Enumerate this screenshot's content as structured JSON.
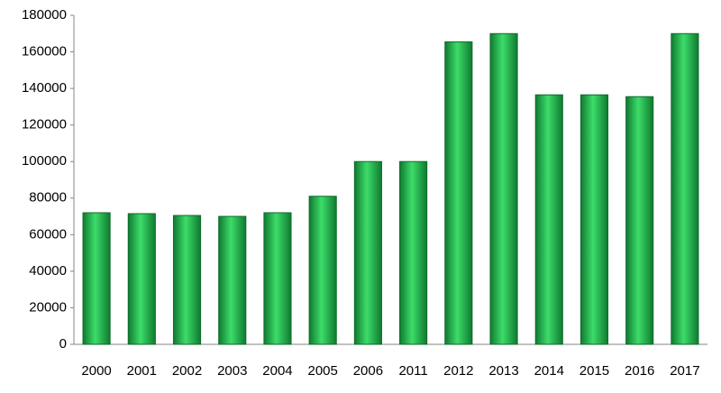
{
  "chart_data": {
    "type": "bar",
    "categories": [
      "2000",
      "2001",
      "2002",
      "2003",
      "2004",
      "2005",
      "2006",
      "2011",
      "2012",
      "2013",
      "2014",
      "2015",
      "2016",
      "2017"
    ],
    "values": [
      72000,
      71500,
      70500,
      70000,
      72000,
      81000,
      100000,
      100000,
      165500,
      170000,
      136500,
      136500,
      135500,
      170000
    ],
    "color": "#3ddc6a",
    "ylim": [
      0,
      180000
    ],
    "yticks": [
      0,
      20000,
      40000,
      60000,
      80000,
      100000,
      120000,
      140000,
      160000,
      180000
    ],
    "grid": false
  }
}
